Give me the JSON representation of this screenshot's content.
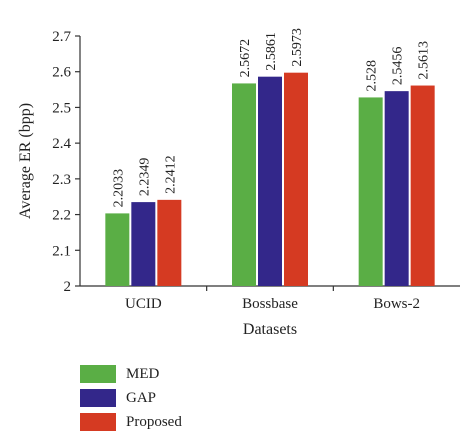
{
  "chart_data": {
    "type": "bar",
    "title": "",
    "xlabel": "Datasets",
    "ylabel": "Average ER (bpp)",
    "ylim": [
      2,
      2.7
    ],
    "yticks": [
      "2",
      "2.1",
      "2.2",
      "2.3",
      "2.4",
      "2.5",
      "2.6",
      "2.7"
    ],
    "categories": [
      "UCID",
      "Bossbase",
      "Bows-2"
    ],
    "series": [
      {
        "name": "MED",
        "color": "#5aae45",
        "values": [
          2.2033,
          2.5672,
          2.528
        ],
        "labels": [
          "2.2033",
          "2.5672",
          "2.528"
        ]
      },
      {
        "name": "GAP",
        "color": "#33278a",
        "values": [
          2.2349,
          2.5861,
          2.5456
        ],
        "labels": [
          "2.2349",
          "2.5861",
          "2.5456"
        ]
      },
      {
        "name": "Proposed",
        "color": "#d53a22",
        "values": [
          2.2412,
          2.5973,
          2.5613
        ],
        "labels": [
          "2.2412",
          "2.5973",
          "2.5613"
        ]
      }
    ],
    "grid": false,
    "legend_position": "bottom-left"
  }
}
